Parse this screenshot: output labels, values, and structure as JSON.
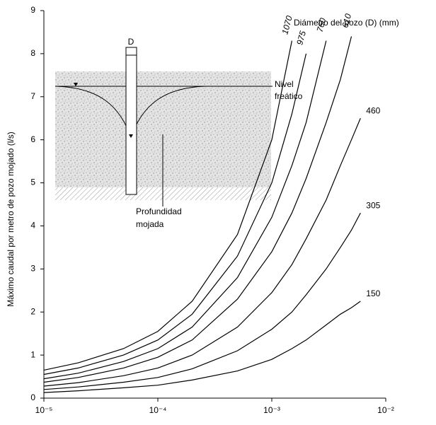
{
  "chart_data": {
    "type": "line",
    "xlabel": "",
    "ylabel": "Máximo caudal por metro de pozo mojado (l/s)",
    "legend_title": "Diámetro del pozo (D) (mm)",
    "xscale": "log",
    "x": [
      1e-05,
      2e-05,
      5e-05,
      0.0001,
      0.0002,
      0.0005,
      0.001,
      0.0015,
      0.002,
      0.003,
      0.004,
      0.005,
      0.006
    ],
    "series": [
      {
        "name": "1070",
        "color": "#000000",
        "values": [
          0.65,
          0.82,
          1.15,
          1.55,
          2.25,
          3.8,
          6.0,
          8.3,
          null,
          null,
          null,
          null,
          null
        ]
      },
      {
        "name": "975",
        "color": "#000000",
        "values": [
          0.55,
          0.7,
          1.0,
          1.35,
          1.95,
          3.3,
          5.0,
          6.6,
          8.0,
          null,
          null,
          null,
          null
        ]
      },
      {
        "name": "760",
        "color": "#000000",
        "values": [
          0.45,
          0.58,
          0.85,
          1.15,
          1.65,
          2.8,
          4.2,
          5.4,
          6.4,
          8.3,
          null,
          null,
          null
        ]
      },
      {
        "name": "610",
        "color": "#000000",
        "values": [
          0.37,
          0.48,
          0.7,
          0.95,
          1.35,
          2.3,
          3.4,
          4.3,
          5.1,
          6.4,
          7.4,
          8.4,
          null
        ]
      },
      {
        "name": "460",
        "color": "#000000",
        "values": [
          0.28,
          0.36,
          0.52,
          0.7,
          1.0,
          1.65,
          2.45,
          3.1,
          3.7,
          4.6,
          5.4,
          6.0,
          6.5
        ]
      },
      {
        "name": "305",
        "color": "#000000",
        "values": [
          0.2,
          0.26,
          0.37,
          0.48,
          0.68,
          1.1,
          1.6,
          2.0,
          2.4,
          3.0,
          3.5,
          3.9,
          4.3
        ]
      },
      {
        "name": "150",
        "color": "#000000",
        "values": [
          0.13,
          0.17,
          0.24,
          0.3,
          0.42,
          0.63,
          0.9,
          1.15,
          1.35,
          1.7,
          1.95,
          2.1,
          2.25
        ]
      }
    ],
    "xlim": [
      1e-05,
      0.01
    ],
    "xticks": [
      {
        "value": 1e-05,
        "label": "10⁻⁵"
      },
      {
        "value": 0.0001,
        "label": "10⁻⁴"
      },
      {
        "value": 0.001,
        "label": "10⁻³"
      },
      {
        "value": 0.01,
        "label": "10⁻²"
      }
    ],
    "ylim": [
      0,
      9
    ],
    "yticks": [
      0,
      1,
      2,
      3,
      4,
      5,
      6,
      7,
      8,
      9
    ],
    "annotations": [
      "D",
      "Nivel",
      "freático",
      "Profundidad",
      "mojada"
    ]
  }
}
